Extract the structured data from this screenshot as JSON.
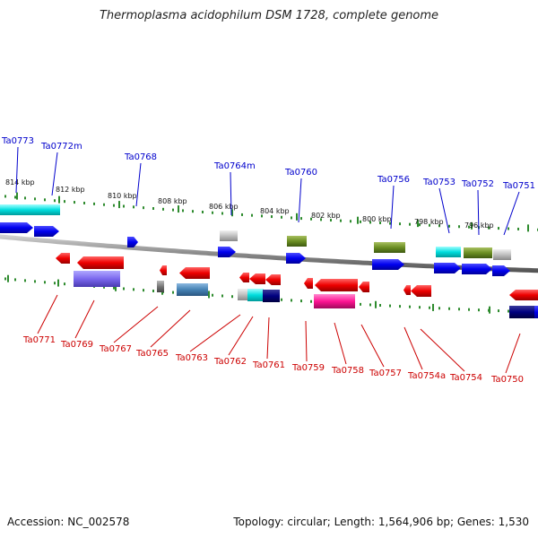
{
  "title": "Thermoplasma acidophilum DSM 1728, complete genome",
  "footer": {
    "accession": "Accession: NC_002578",
    "summary": "Topology: circular; Length: 1,564,906 bp; Genes: 1,530"
  },
  "colors": {
    "forward_label": "#0000cc",
    "reverse_label": "#cc0000",
    "scale_tick": "#2e8b2e",
    "backbone": "#888888"
  },
  "kbp_labels": [
    "814 kbp",
    "812 kbp",
    "810 kbp",
    "808 kbp",
    "806 kbp",
    "804 kbp",
    "802 kbp",
    "800 kbp",
    "798 kbp",
    "796 kbp"
  ],
  "forward_genes": [
    "Ta0773",
    "Ta0772m",
    "Ta0768",
    "Ta0764m",
    "Ta0760",
    "Ta0756",
    "Ta0753",
    "Ta0752",
    "Ta0751"
  ],
  "reverse_genes": [
    "Ta0771",
    "Ta0769",
    "Ta0767",
    "Ta0765",
    "Ta0763",
    "Ta0762",
    "Ta0761",
    "Ta0759",
    "Ta0758",
    "Ta0757",
    "Ta0754a",
    "Ta0754",
    "Ta0750"
  ]
}
